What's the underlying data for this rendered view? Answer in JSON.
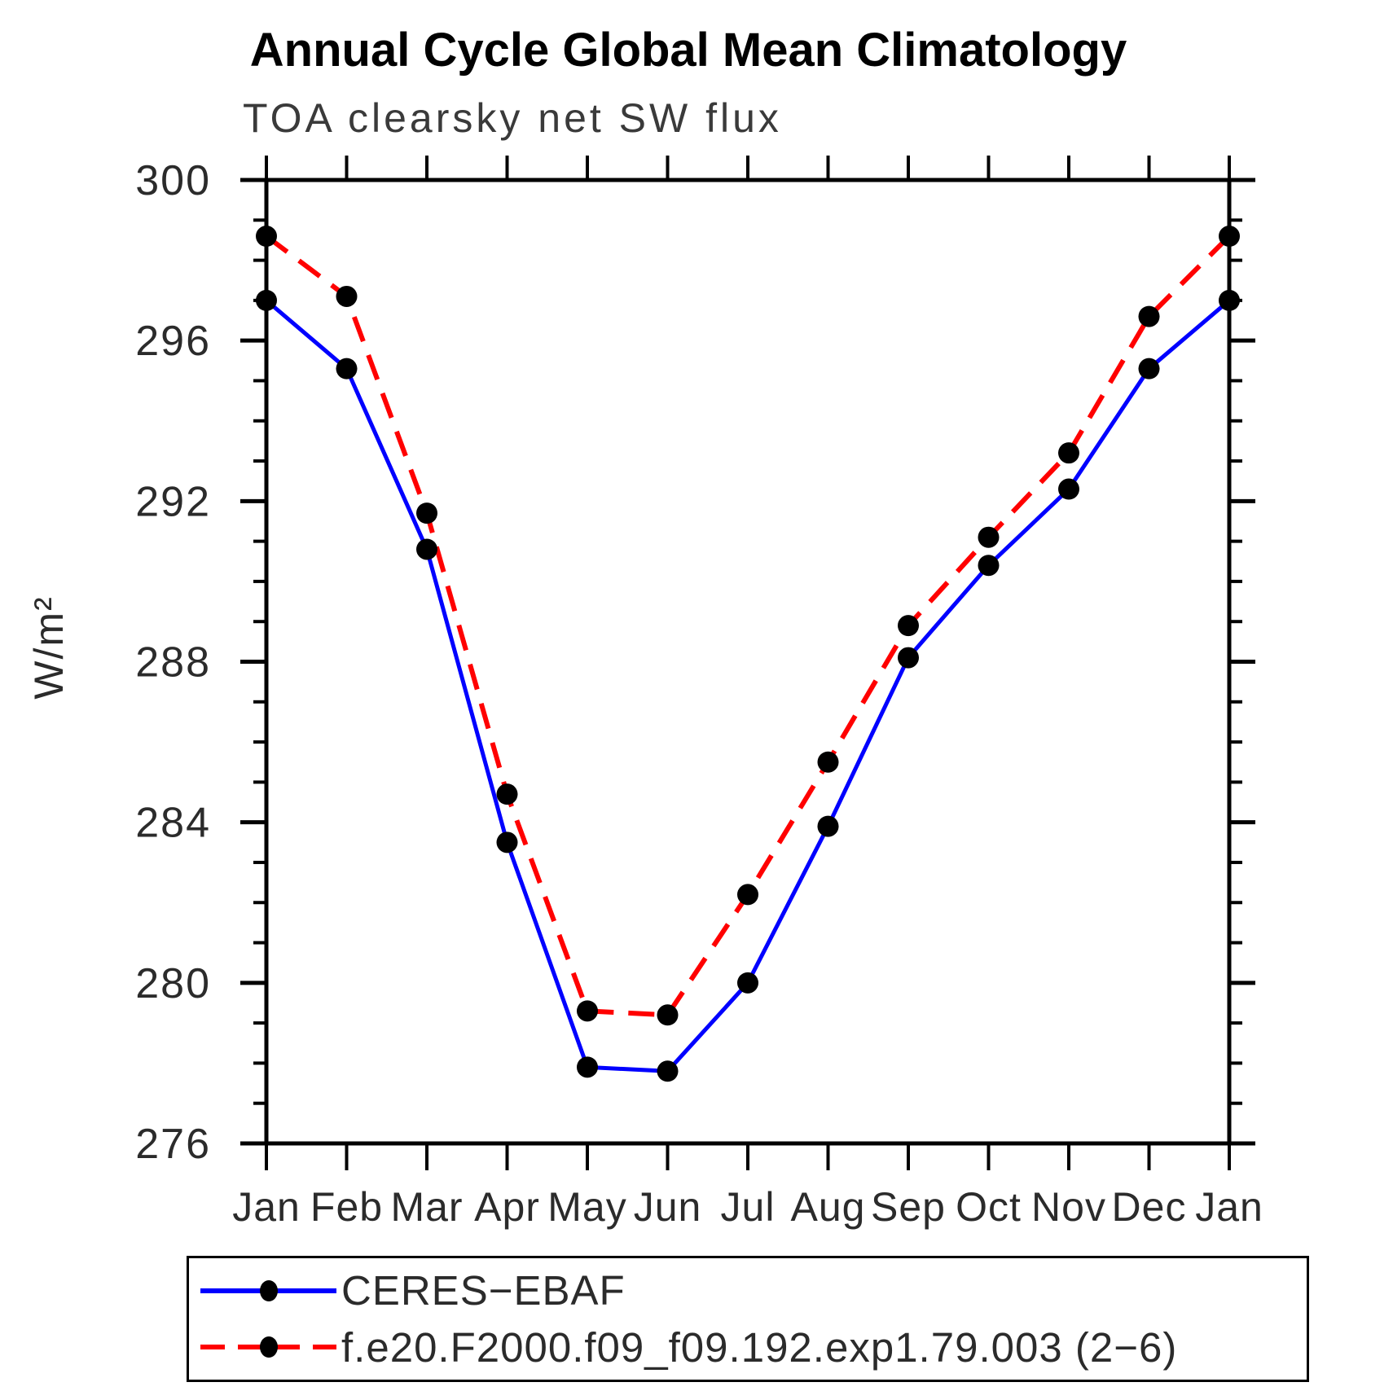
{
  "header": {
    "title": "Annual Cycle Global Mean Climatology"
  },
  "chart_data": {
    "type": "line",
    "title": "TOA clearsky net SW flux",
    "xlabel": "",
    "ylabel": "W/m²",
    "categories": [
      "Jan",
      "Feb",
      "Mar",
      "Apr",
      "May",
      "Jun",
      "Jul",
      "Aug",
      "Sep",
      "Oct",
      "Nov",
      "Dec",
      "Jan"
    ],
    "ylim": [
      276,
      300
    ],
    "y_ticks_major": [
      276,
      280,
      284,
      288,
      292,
      296,
      300
    ],
    "y_minor_step": 1,
    "grid": false,
    "legend_position": "bottom",
    "frame_color": "#000000",
    "series": [
      {
        "name": "CERES−EBAF",
        "color": "#0000ff",
        "style": "solid",
        "marker": "circle",
        "marker_color": "#000000",
        "values": [
          297.0,
          295.3,
          290.8,
          283.5,
          277.9,
          277.8,
          280.0,
          283.9,
          288.1,
          290.4,
          292.3,
          295.3,
          297.0
        ]
      },
      {
        "name": "f.e20.F2000.f09_f09.192.exp1.79.003 (2−6)",
        "color": "#ff0000",
        "style": "dashed",
        "marker": "circle",
        "marker_color": "#000000",
        "values": [
          298.6,
          297.1,
          291.7,
          284.7,
          279.3,
          279.2,
          282.2,
          285.5,
          288.9,
          291.1,
          293.2,
          296.6,
          298.6
        ]
      }
    ]
  }
}
